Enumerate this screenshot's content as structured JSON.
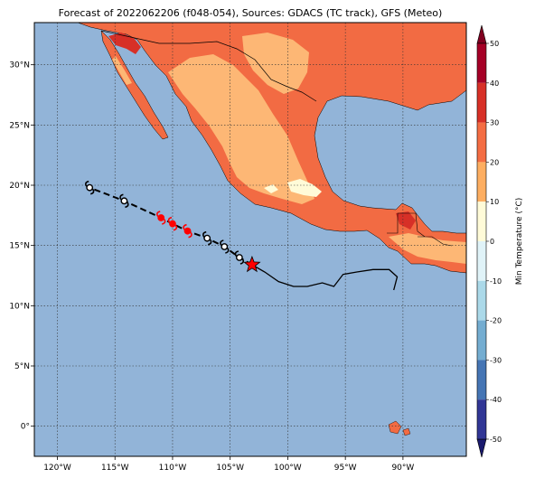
{
  "title": "Forecast of 2022062206 (f048-054), Sources: GDACS (TC track), GFS (Meteo)",
  "map": {
    "lon_range": [
      -122,
      -84.5
    ],
    "lat_range": [
      -2.5,
      33.5
    ],
    "lon_ticks": [
      {
        "value": -120,
        "label": "120°W"
      },
      {
        "value": -115,
        "label": "115°W"
      },
      {
        "value": -110,
        "label": "110°W"
      },
      {
        "value": -105,
        "label": "105°W"
      },
      {
        "value": -100,
        "label": "100°W"
      },
      {
        "value": -95,
        "label": "95°W"
      },
      {
        "value": -90,
        "label": "90°W"
      }
    ],
    "lat_ticks": [
      {
        "value": 0,
        "label": "0°"
      },
      {
        "value": 5,
        "label": "5°N"
      },
      {
        "value": 10,
        "label": "10°N"
      },
      {
        "value": 15,
        "label": "15°N"
      },
      {
        "value": 20,
        "label": "20°N"
      },
      {
        "value": 25,
        "label": "25°N"
      },
      {
        "value": 30,
        "label": "30°N"
      }
    ],
    "gridlines": true,
    "colors": {
      "ocean": "#92b4d8",
      "land_20_30": "#f26b43",
      "land_10_20": "#fdb775",
      "land_0_10": "#fffbd8",
      "land_30_40": "#d73027",
      "track_past": "#000000",
      "storm_red": "#ff0000",
      "storm_black": "#000000"
    }
  },
  "storm_track": {
    "current_position": {
      "lon": -103.1,
      "lat": 13.4
    },
    "past_path": [
      {
        "lon": -103.1,
        "lat": 13.4
      },
      {
        "lon": -102.0,
        "lat": 12.8
      },
      {
        "lon": -100.8,
        "lat": 12.0
      },
      {
        "lon": -99.5,
        "lat": 11.6
      },
      {
        "lon": -98.3,
        "lat": 11.6
      },
      {
        "lon": -97.0,
        "lat": 11.9
      },
      {
        "lon": -96.0,
        "lat": 11.6
      },
      {
        "lon": -95.2,
        "lat": 12.6
      },
      {
        "lon": -94.0,
        "lat": 12.8
      },
      {
        "lon": -92.6,
        "lat": 13.0
      },
      {
        "lon": -91.2,
        "lat": 13.0
      },
      {
        "lon": -90.5,
        "lat": 12.4
      },
      {
        "lon": -90.8,
        "lat": 11.3
      }
    ],
    "forecast_points": [
      {
        "lon": -117.2,
        "lat": 19.8,
        "color": "black"
      },
      {
        "lon": -114.2,
        "lat": 18.7,
        "color": "black"
      },
      {
        "lon": -111.0,
        "lat": 17.3,
        "color": "red"
      },
      {
        "lon": -110.0,
        "lat": 16.8,
        "color": "red"
      },
      {
        "lon": -108.7,
        "lat": 16.2,
        "color": "red"
      },
      {
        "lon": -107.0,
        "lat": 15.6,
        "color": "black"
      },
      {
        "lon": -105.5,
        "lat": 14.9,
        "color": "black"
      },
      {
        "lon": -104.2,
        "lat": 14.0,
        "color": "black"
      }
    ]
  },
  "colorbar": {
    "label": "Min Temperature (°C)",
    "ticks": [
      50,
      40,
      30,
      20,
      10,
      0,
      -10,
      -20,
      -30,
      -40,
      -50
    ],
    "bands": [
      {
        "from": 40,
        "to": 50,
        "color": "#a50026"
      },
      {
        "from": 30,
        "to": 40,
        "color": "#d73027"
      },
      {
        "from": 20,
        "to": 30,
        "color": "#f46d43"
      },
      {
        "from": 10,
        "to": 20,
        "color": "#fdae61"
      },
      {
        "from": 0,
        "to": 10,
        "color": "#fffbd8"
      },
      {
        "from": -10,
        "to": 0,
        "color": "#e0f3f8"
      },
      {
        "from": -20,
        "to": -10,
        "color": "#abd9e9"
      },
      {
        "from": -30,
        "to": -20,
        "color": "#74add1"
      },
      {
        "from": -40,
        "to": -30,
        "color": "#4575b4"
      },
      {
        "from": -50,
        "to": -40,
        "color": "#313695"
      }
    ],
    "extend_top_color": "#800020",
    "extend_bottom_color": "#1a1a6e"
  }
}
